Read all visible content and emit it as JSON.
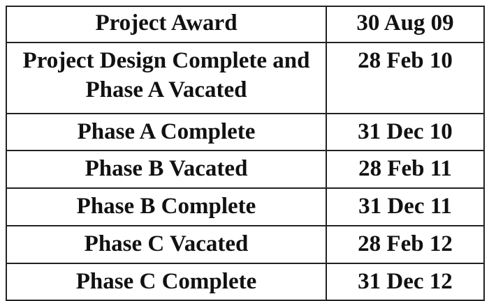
{
  "table": {
    "rows": [
      {
        "milestone": "Project Award",
        "date": "30 Aug 09"
      },
      {
        "milestone": "Project Design Complete and Phase A Vacated",
        "date": "28 Feb 10"
      },
      {
        "milestone": "Phase A Complete",
        "date": "31 Dec 10"
      },
      {
        "milestone": "Phase B Vacated",
        "date": "28 Feb 11"
      },
      {
        "milestone": "Phase B Complete",
        "date": "31 Dec 11"
      },
      {
        "milestone": "Phase C Vacated",
        "date": "28 Feb 12"
      },
      {
        "milestone": "Phase C Complete",
        "date": "31 Dec 12"
      }
    ]
  }
}
